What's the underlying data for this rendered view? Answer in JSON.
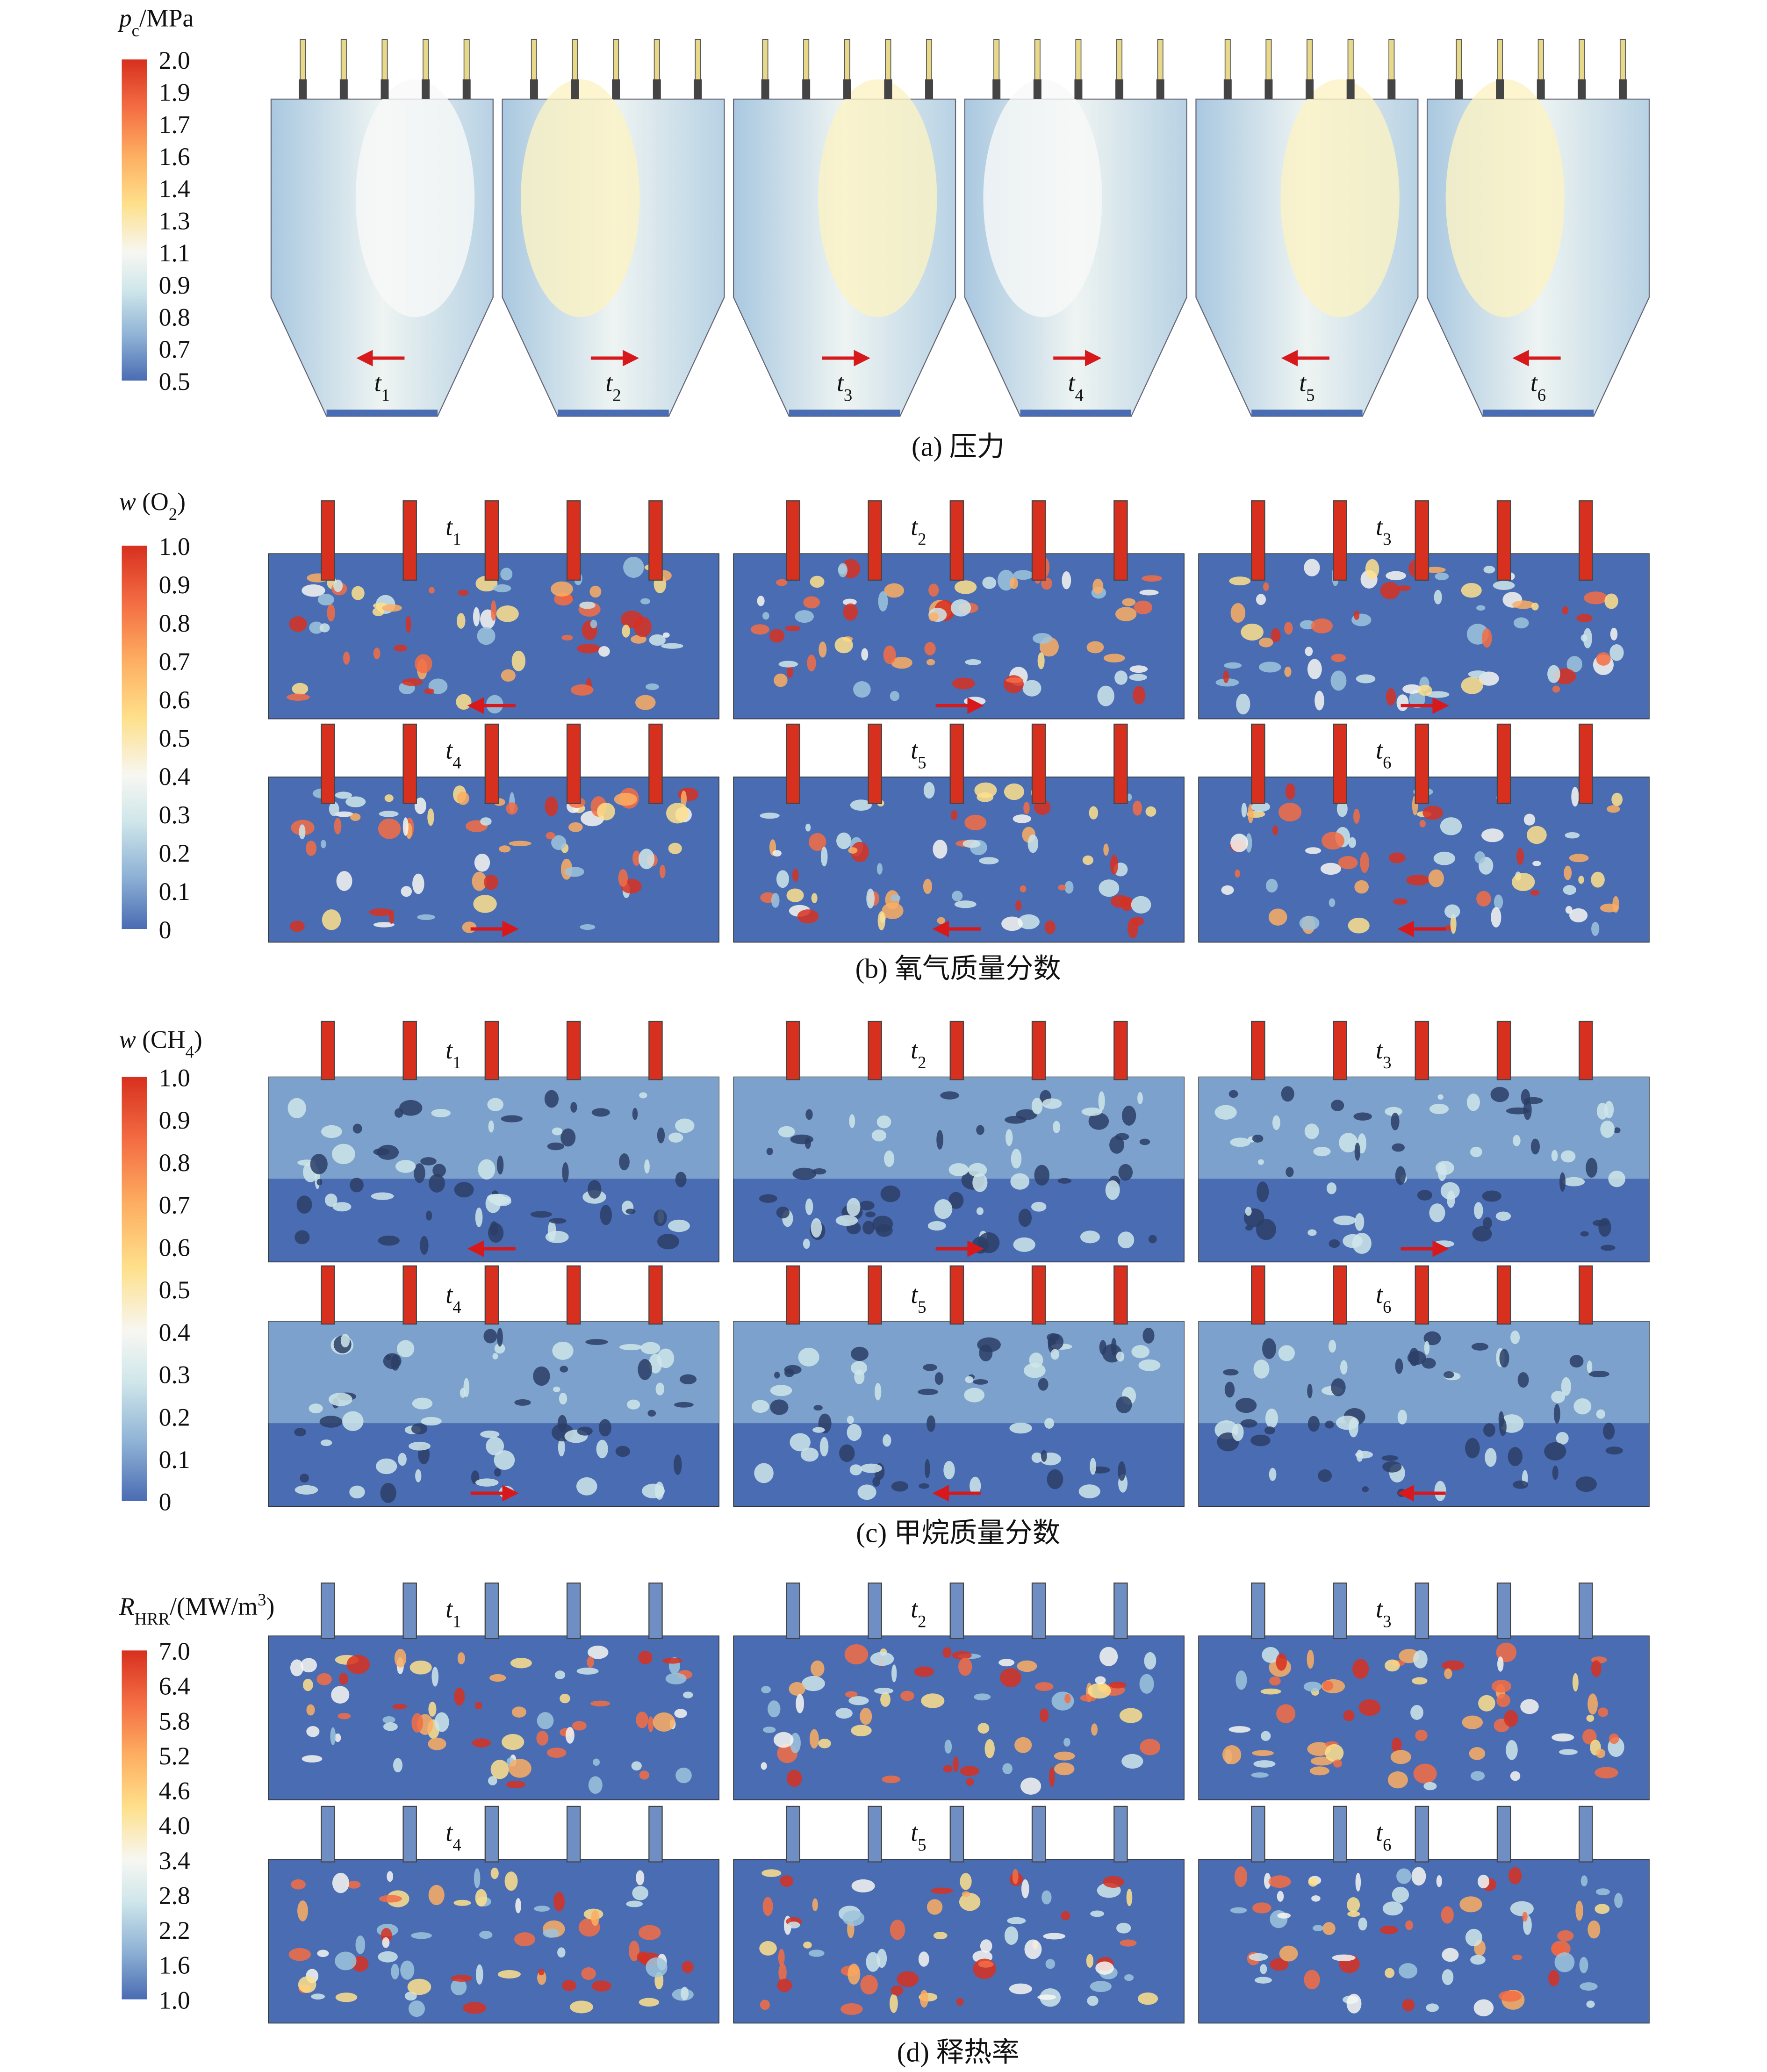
{
  "panels": [
    {
      "caption": "(a) 压力",
      "layout": "chamber",
      "colorbar": {
        "label": [
          {
            "text": "p",
            "style": "italic"
          },
          {
            "text": "c",
            "style": "sub"
          },
          {
            "text": "/MPa",
            "style": "normal"
          }
        ],
        "ticks": [
          "2.0",
          "1.9",
          "1.7",
          "1.6",
          "1.4",
          "1.3",
          "1.1",
          "0.9",
          "0.8",
          "0.7",
          "0.5"
        ]
      },
      "frames": [
        {
          "base": "t",
          "sub": "1",
          "arrow": "left"
        },
        {
          "base": "t",
          "sub": "2",
          "arrow": "right"
        },
        {
          "base": "t",
          "sub": "3",
          "arrow": "right"
        },
        {
          "base": "t",
          "sub": "4",
          "arrow": "right"
        },
        {
          "base": "t",
          "sub": "5",
          "arrow": "left"
        },
        {
          "base": "t",
          "sub": "6",
          "arrow": "left"
        }
      ]
    },
    {
      "caption": "(b) 氧气质量分数",
      "layout": "grid",
      "colorbar": {
        "label": [
          {
            "text": "w",
            "style": "italic"
          },
          {
            "text": " (O",
            "style": "normal"
          },
          {
            "text": "2",
            "style": "sub"
          },
          {
            "text": ")",
            "style": "normal"
          }
        ],
        "ticks": [
          "1.0",
          "0.9",
          "0.8",
          "0.7",
          "0.6",
          "0.5",
          "0.4",
          "0.3",
          "0.2",
          "0.1",
          "0"
        ]
      },
      "frames": [
        {
          "base": "t",
          "sub": "1",
          "arrow": "left"
        },
        {
          "base": "t",
          "sub": "2",
          "arrow": "right"
        },
        {
          "base": "t",
          "sub": "3",
          "arrow": "right"
        },
        {
          "base": "t",
          "sub": "4",
          "arrow": "right"
        },
        {
          "base": "t",
          "sub": "5",
          "arrow": "left"
        },
        {
          "base": "t",
          "sub": "6",
          "arrow": "left"
        }
      ]
    },
    {
      "caption": "(c) 甲烷质量分数",
      "layout": "grid",
      "colorbar": {
        "label": [
          {
            "text": "w",
            "style": "italic"
          },
          {
            "text": " (CH",
            "style": "normal"
          },
          {
            "text": "4",
            "style": "sub"
          },
          {
            "text": ")",
            "style": "normal"
          }
        ],
        "ticks": [
          "1.0",
          "0.9",
          "0.8",
          "0.7",
          "0.6",
          "0.5",
          "0.4",
          "0.3",
          "0.2",
          "0.1",
          "0"
        ]
      },
      "frames": [
        {
          "base": "t",
          "sub": "1",
          "arrow": "left"
        },
        {
          "base": "t",
          "sub": "2",
          "arrow": "right"
        },
        {
          "base": "t",
          "sub": "3",
          "arrow": "right"
        },
        {
          "base": "t",
          "sub": "4",
          "arrow": "right"
        },
        {
          "base": "t",
          "sub": "5",
          "arrow": "left"
        },
        {
          "base": "t",
          "sub": "6",
          "arrow": "left"
        }
      ]
    },
    {
      "caption": "(d) 释热率",
      "layout": "grid",
      "colorbar": {
        "label": [
          {
            "text": "R",
            "style": "italic"
          },
          {
            "text": "HRR",
            "style": "sub"
          },
          {
            "text": "/(MW/m",
            "style": "normal"
          },
          {
            "text": "3",
            "style": "sup"
          },
          {
            "text": ")",
            "style": "normal"
          }
        ],
        "ticks": [
          "7.0",
          "6.4",
          "5.8",
          "5.2",
          "4.6",
          "4.0",
          "3.4",
          "2.8",
          "2.2",
          "1.6",
          "1.0"
        ]
      },
      "frames": [
        {
          "base": "t",
          "sub": "1"
        },
        {
          "base": "t",
          "sub": "2"
        },
        {
          "base": "t",
          "sub": "3"
        },
        {
          "base": "t",
          "sub": "4"
        },
        {
          "base": "t",
          "sub": "5"
        },
        {
          "base": "t",
          "sub": "6"
        }
      ]
    }
  ]
}
